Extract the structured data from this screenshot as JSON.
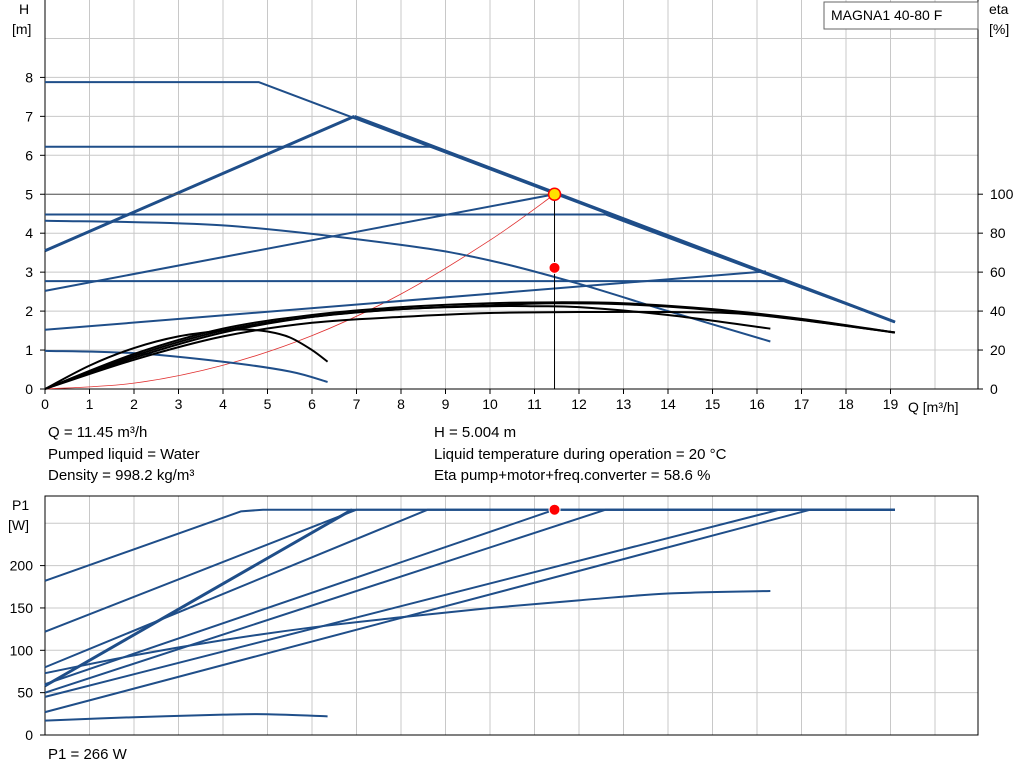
{
  "colors": {
    "curve_blue": "#1f4e89",
    "eta_black": "#000000",
    "system_red": "#e03030",
    "duty_point": "#ff0000",
    "duty_point_upper": "#ffe000",
    "grid": "#c8c8c8"
  },
  "chart_data": [
    {
      "type": "line",
      "title": "",
      "model_box": "MAGNA1 40-80 F",
      "x_axis_label": "Q [m³/h]",
      "y_axis_label_line1": "H",
      "y_axis_label_line2": "[m]",
      "y2_axis_label_line1": "eta",
      "y2_axis_label_line2": "[%]",
      "xlim": [
        0,
        21
      ],
      "ylim": [
        0,
        9
      ],
      "y2lim": [
        0,
        100
      ],
      "x_ticks": [
        0,
        1,
        2,
        3,
        4,
        5,
        6,
        7,
        8,
        9,
        10,
        11,
        12,
        13,
        14,
        15,
        16,
        17,
        18,
        19
      ],
      "y_ticks": [
        0,
        1,
        2,
        3,
        4,
        5,
        6,
        7,
        8
      ],
      "y2_ticks": [
        0,
        20,
        40,
        60,
        80,
        100
      ],
      "grid": true,
      "head_curves": [
        {
          "x": [
            0,
            4.8,
            19.1
          ],
          "y": [
            7.88,
            7.88,
            1.72
          ]
        },
        {
          "x": [
            0,
            8.7,
            19.1
          ],
          "y": [
            6.22,
            6.22,
            1.72
          ]
        },
        {
          "x": [
            0,
            12.6,
            19.1
          ],
          "y": [
            4.48,
            4.48,
            1.72
          ]
        },
        {
          "x": [
            0,
            16.6,
            19.1
          ],
          "y": [
            2.77,
            2.77,
            1.72
          ]
        },
        {
          "x": [
            0,
            6.95
          ],
          "y": [
            3.55,
            7.0
          ],
          "bold": true
        },
        {
          "x": [
            6.95,
            19.1
          ],
          "y": [
            7.0,
            1.72
          ],
          "bold": true
        },
        {
          "x": [
            0,
            11.45
          ],
          "y": [
            2.52,
            5.0
          ]
        },
        {
          "x": [
            0,
            16.2
          ],
          "y": [
            1.52,
            3.02
          ]
        },
        {
          "x": [
            0,
            4,
            8,
            10,
            12,
            14,
            16.3
          ],
          "y": [
            4.32,
            4.2,
            3.7,
            3.3,
            2.7,
            2.0,
            1.22
          ]
        },
        {
          "x": [
            0,
            2,
            4,
            5.5,
            6.35
          ],
          "y": [
            0.98,
            0.92,
            0.7,
            0.45,
            0.18
          ]
        }
      ],
      "eta_curves": [
        {
          "x": [
            0,
            2,
            4,
            6,
            8,
            10,
            11.45,
            13,
            15,
            17,
            19.1
          ],
          "y": [
            0,
            18,
            31,
            38,
            42,
            44,
            44.5,
            44,
            41,
            36,
            29
          ]
        },
        {
          "x": [
            0,
            2,
            4,
            6,
            8,
            10,
            11.45,
            13,
            15,
            17,
            19.1
          ],
          "y": [
            0,
            17,
            30,
            37,
            41,
            43,
            44,
            43.5,
            40.5,
            35.5,
            29
          ]
        },
        {
          "x": [
            0,
            2,
            4,
            6,
            8,
            10,
            11,
            12,
            14,
            16.3
          ],
          "y": [
            0,
            16,
            29,
            37,
            41,
            42.5,
            42.5,
            42,
            38,
            31
          ]
        },
        {
          "x": [
            0,
            2,
            4,
            6,
            8,
            10,
            12,
            14,
            16,
            19.1
          ],
          "y": [
            0,
            15,
            27,
            34,
            37,
            39,
            39.5,
            39.5,
            38,
            29
          ]
        },
        {
          "x": [
            0,
            1,
            2,
            3,
            4,
            4.5,
            5,
            5.5,
            6,
            6.35
          ],
          "y": [
            0,
            12,
            21,
            27,
            30,
            30.5,
            29.5,
            26.5,
            20,
            14
          ]
        }
      ],
      "system_curve": {
        "x": [
          0,
          2,
          4,
          6,
          8,
          10,
          11.45
        ],
        "y": [
          0,
          0.15,
          0.61,
          1.37,
          2.44,
          3.82,
          5.0
        ]
      },
      "duty_point": {
        "x": 11.45,
        "head": 5.0,
        "eta": 58.6
      },
      "info_left": [
        "Q = 11.45 m³/h",
        "Pumped liquid = Water",
        "Density = 998.2 kg/m³"
      ],
      "info_right": [
        "H = 5.004 m",
        "Liquid temperature during operation = 20 °C",
        "Eta pump+motor+freq.converter = 58.6 %"
      ]
    },
    {
      "type": "line",
      "title": "",
      "y_axis_label_line1": "P1",
      "y_axis_label_line2": "[W]",
      "xlim": [
        0,
        21
      ],
      "ylim": [
        0,
        280
      ],
      "y_ticks": [
        0,
        50,
        100,
        150,
        200
      ],
      "grid": true,
      "power_curves": [
        {
          "x": [
            0,
            4.4,
            4.9,
            19.1
          ],
          "y": [
            182,
            264,
            266,
            266
          ]
        },
        {
          "x": [
            0,
            7.0,
            19.1
          ],
          "y": [
            122,
            266,
            266
          ]
        },
        {
          "x": [
            0,
            6.9
          ],
          "y": [
            58,
            266
          ],
          "bold": true
        },
        {
          "x": [
            0,
            8.6,
            19.1
          ],
          "y": [
            80,
            266,
            266
          ]
        },
        {
          "x": [
            0,
            11.45
          ],
          "y": [
            60,
            266
          ]
        },
        {
          "x": [
            0,
            12.6,
            19.1
          ],
          "y": [
            50,
            266,
            266
          ]
        },
        {
          "x": [
            0,
            16.5,
            19.1
          ],
          "y": [
            45,
            266,
            266
          ]
        },
        {
          "x": [
            0,
            17.2,
            19.1
          ],
          "y": [
            27,
            266,
            266
          ]
        },
        {
          "x": [
            0,
            2,
            4,
            6,
            8,
            10,
            12,
            14,
            16.3
          ],
          "y": [
            73,
            94,
            112,
            127,
            139,
            150,
            159,
            167,
            170
          ]
        },
        {
          "x": [
            0,
            2,
            4,
            5,
            6.35
          ],
          "y": [
            17,
            21,
            24,
            24.5,
            22
          ]
        }
      ],
      "duty_point": {
        "x": 11.45,
        "p1": 266
      },
      "info": "P1 = 266 W"
    }
  ]
}
